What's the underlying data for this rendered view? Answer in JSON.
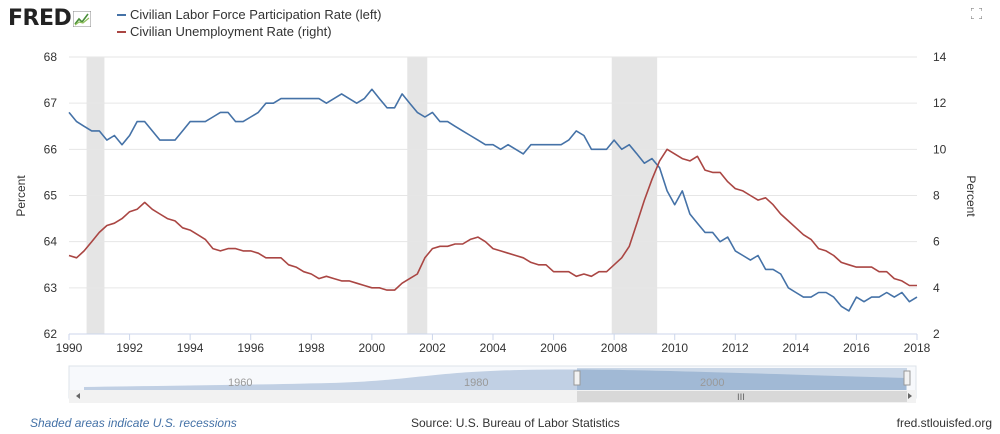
{
  "header": {
    "logo_text": "FRED",
    "fullscreen_icon": "fullscreen-icon",
    "logo_icon": "chart-line-icon"
  },
  "legend": [
    {
      "label": "Civilian Labor Force Participation Rate (left)",
      "color": "#4572a7"
    },
    {
      "label": "Civilian Unemployment Rate (right)",
      "color": "#aa4643"
    }
  ],
  "footer": {
    "recession_note": "Shaded areas indicate U.S. recessions",
    "source": "Source: U.S. Bureau of Labor Statistics",
    "site": "fred.stlouisfed.org"
  },
  "colors": {
    "lfpr": "#4572a7",
    "unrate": "#aa4643",
    "recession": "#e5e5e5",
    "grid": "#e6e6e6"
  },
  "navigator": {
    "labels": [
      "1960",
      "1980",
      "2000"
    ]
  },
  "chart_data": {
    "type": "line",
    "title": "",
    "xlabel": "",
    "x_range": [
      1990,
      2018
    ],
    "x_ticks": [
      "1990",
      "1992",
      "1994",
      "1996",
      "1998",
      "2000",
      "2002",
      "2004",
      "2006",
      "2008",
      "2010",
      "2012",
      "2014",
      "2016",
      "2018"
    ],
    "left_axis": {
      "label": "Percent",
      "range": [
        62,
        68
      ],
      "ticks": [
        "62",
        "63",
        "64",
        "65",
        "66",
        "67",
        "68"
      ]
    },
    "right_axis": {
      "label": "Percent",
      "range": [
        2,
        14
      ],
      "ticks": [
        "2",
        "4",
        "6",
        "8",
        "10",
        "12",
        "14"
      ]
    },
    "recessions": [
      [
        1990.58,
        1991.17
      ],
      [
        2001.17,
        2001.83
      ],
      [
        2007.92,
        2009.42
      ]
    ],
    "series": [
      {
        "name": "Civilian Labor Force Participation Rate (left)",
        "axis": "left",
        "points": [
          [
            1990.0,
            66.8
          ],
          [
            1990.25,
            66.6
          ],
          [
            1990.5,
            66.5
          ],
          [
            1990.75,
            66.4
          ],
          [
            1991.0,
            66.4
          ],
          [
            1991.25,
            66.2
          ],
          [
            1991.5,
            66.3
          ],
          [
            1991.75,
            66.1
          ],
          [
            1992.0,
            66.3
          ],
          [
            1992.25,
            66.6
          ],
          [
            1992.5,
            66.6
          ],
          [
            1992.75,
            66.4
          ],
          [
            1993.0,
            66.2
          ],
          [
            1993.25,
            66.2
          ],
          [
            1993.5,
            66.2
          ],
          [
            1993.75,
            66.4
          ],
          [
            1994.0,
            66.6
          ],
          [
            1994.25,
            66.6
          ],
          [
            1994.5,
            66.6
          ],
          [
            1994.75,
            66.7
          ],
          [
            1995.0,
            66.8
          ],
          [
            1995.25,
            66.8
          ],
          [
            1995.5,
            66.6
          ],
          [
            1995.75,
            66.6
          ],
          [
            1996.0,
            66.7
          ],
          [
            1996.25,
            66.8
          ],
          [
            1996.5,
            67.0
          ],
          [
            1996.75,
            67.0
          ],
          [
            1997.0,
            67.1
          ],
          [
            1997.25,
            67.1
          ],
          [
            1997.5,
            67.1
          ],
          [
            1997.75,
            67.1
          ],
          [
            1998.0,
            67.1
          ],
          [
            1998.25,
            67.1
          ],
          [
            1998.5,
            67.0
          ],
          [
            1998.75,
            67.1
          ],
          [
            1999.0,
            67.2
          ],
          [
            1999.25,
            67.1
          ],
          [
            1999.5,
            67.0
          ],
          [
            1999.75,
            67.1
          ],
          [
            2000.0,
            67.3
          ],
          [
            2000.25,
            67.1
          ],
          [
            2000.5,
            66.9
          ],
          [
            2000.75,
            66.9
          ],
          [
            2001.0,
            67.2
          ],
          [
            2001.25,
            67.0
          ],
          [
            2001.5,
            66.8
          ],
          [
            2001.75,
            66.7
          ],
          [
            2002.0,
            66.8
          ],
          [
            2002.25,
            66.6
          ],
          [
            2002.5,
            66.6
          ],
          [
            2002.75,
            66.5
          ],
          [
            2003.0,
            66.4
          ],
          [
            2003.25,
            66.3
          ],
          [
            2003.5,
            66.2
          ],
          [
            2003.75,
            66.1
          ],
          [
            2004.0,
            66.1
          ],
          [
            2004.25,
            66.0
          ],
          [
            2004.5,
            66.1
          ],
          [
            2004.75,
            66.0
          ],
          [
            2005.0,
            65.9
          ],
          [
            2005.25,
            66.1
          ],
          [
            2005.5,
            66.1
          ],
          [
            2005.75,
            66.1
          ],
          [
            2006.0,
            66.1
          ],
          [
            2006.25,
            66.1
          ],
          [
            2006.5,
            66.2
          ],
          [
            2006.75,
            66.4
          ],
          [
            2007.0,
            66.3
          ],
          [
            2007.25,
            66.0
          ],
          [
            2007.5,
            66.0
          ],
          [
            2007.75,
            66.0
          ],
          [
            2008.0,
            66.2
          ],
          [
            2008.25,
            66.0
          ],
          [
            2008.5,
            66.1
          ],
          [
            2008.75,
            65.9
          ],
          [
            2009.0,
            65.7
          ],
          [
            2009.25,
            65.8
          ],
          [
            2009.5,
            65.6
          ],
          [
            2009.75,
            65.1
          ],
          [
            2010.0,
            64.8
          ],
          [
            2010.25,
            65.1
          ],
          [
            2010.5,
            64.6
          ],
          [
            2010.75,
            64.4
          ],
          [
            2011.0,
            64.2
          ],
          [
            2011.25,
            64.2
          ],
          [
            2011.5,
            64.0
          ],
          [
            2011.75,
            64.1
          ],
          [
            2012.0,
            63.8
          ],
          [
            2012.25,
            63.7
          ],
          [
            2012.5,
            63.6
          ],
          [
            2012.75,
            63.7
          ],
          [
            2013.0,
            63.4
          ],
          [
            2013.25,
            63.4
          ],
          [
            2013.5,
            63.3
          ],
          [
            2013.75,
            63.0
          ],
          [
            2014.0,
            62.9
          ],
          [
            2014.25,
            62.8
          ],
          [
            2014.5,
            62.8
          ],
          [
            2014.75,
            62.9
          ],
          [
            2015.0,
            62.9
          ],
          [
            2015.25,
            62.8
          ],
          [
            2015.5,
            62.6
          ],
          [
            2015.75,
            62.5
          ],
          [
            2016.0,
            62.8
          ],
          [
            2016.25,
            62.7
          ],
          [
            2016.5,
            62.8
          ],
          [
            2016.75,
            62.8
          ],
          [
            2017.0,
            62.9
          ],
          [
            2017.25,
            62.8
          ],
          [
            2017.5,
            62.9
          ],
          [
            2017.75,
            62.7
          ],
          [
            2018.0,
            62.8
          ]
        ]
      },
      {
        "name": "Civilian Unemployment Rate (right)",
        "axis": "right",
        "points": [
          [
            1990.0,
            5.4
          ],
          [
            1990.25,
            5.3
          ],
          [
            1990.5,
            5.6
          ],
          [
            1990.75,
            6.0
          ],
          [
            1991.0,
            6.4
          ],
          [
            1991.25,
            6.7
          ],
          [
            1991.5,
            6.8
          ],
          [
            1991.75,
            7.0
          ],
          [
            1992.0,
            7.3
          ],
          [
            1992.25,
            7.4
          ],
          [
            1992.5,
            7.7
          ],
          [
            1992.75,
            7.4
          ],
          [
            1993.0,
            7.2
          ],
          [
            1993.25,
            7.0
          ],
          [
            1993.5,
            6.9
          ],
          [
            1993.75,
            6.6
          ],
          [
            1994.0,
            6.5
          ],
          [
            1994.25,
            6.3
          ],
          [
            1994.5,
            6.1
          ],
          [
            1994.75,
            5.7
          ],
          [
            1995.0,
            5.6
          ],
          [
            1995.25,
            5.7
          ],
          [
            1995.5,
            5.7
          ],
          [
            1995.75,
            5.6
          ],
          [
            1996.0,
            5.6
          ],
          [
            1996.25,
            5.5
          ],
          [
            1996.5,
            5.3
          ],
          [
            1996.75,
            5.3
          ],
          [
            1997.0,
            5.3
          ],
          [
            1997.25,
            5.0
          ],
          [
            1997.5,
            4.9
          ],
          [
            1997.75,
            4.7
          ],
          [
            1998.0,
            4.6
          ],
          [
            1998.25,
            4.4
          ],
          [
            1998.5,
            4.5
          ],
          [
            1998.75,
            4.4
          ],
          [
            1999.0,
            4.3
          ],
          [
            1999.25,
            4.3
          ],
          [
            1999.5,
            4.2
          ],
          [
            1999.75,
            4.1
          ],
          [
            2000.0,
            4.0
          ],
          [
            2000.25,
            4.0
          ],
          [
            2000.5,
            3.9
          ],
          [
            2000.75,
            3.9
          ],
          [
            2001.0,
            4.2
          ],
          [
            2001.25,
            4.4
          ],
          [
            2001.5,
            4.6
          ],
          [
            2001.75,
            5.3
          ],
          [
            2002.0,
            5.7
          ],
          [
            2002.25,
            5.8
          ],
          [
            2002.5,
            5.8
          ],
          [
            2002.75,
            5.9
          ],
          [
            2003.0,
            5.9
          ],
          [
            2003.25,
            6.1
          ],
          [
            2003.5,
            6.2
          ],
          [
            2003.75,
            6.0
          ],
          [
            2004.0,
            5.7
          ],
          [
            2004.25,
            5.6
          ],
          [
            2004.5,
            5.5
          ],
          [
            2004.75,
            5.4
          ],
          [
            2005.0,
            5.3
          ],
          [
            2005.25,
            5.1
          ],
          [
            2005.5,
            5.0
          ],
          [
            2005.75,
            5.0
          ],
          [
            2006.0,
            4.7
          ],
          [
            2006.25,
            4.7
          ],
          [
            2006.5,
            4.7
          ],
          [
            2006.75,
            4.5
          ],
          [
            2007.0,
            4.6
          ],
          [
            2007.25,
            4.5
          ],
          [
            2007.5,
            4.7
          ],
          [
            2007.75,
            4.7
          ],
          [
            2008.0,
            5.0
          ],
          [
            2008.25,
            5.3
          ],
          [
            2008.5,
            5.8
          ],
          [
            2008.75,
            6.8
          ],
          [
            2009.0,
            7.8
          ],
          [
            2009.25,
            8.7
          ],
          [
            2009.5,
            9.5
          ],
          [
            2009.75,
            10.0
          ],
          [
            2010.0,
            9.8
          ],
          [
            2010.25,
            9.6
          ],
          [
            2010.5,
            9.5
          ],
          [
            2010.75,
            9.7
          ],
          [
            2011.0,
            9.1
          ],
          [
            2011.25,
            9.0
          ],
          [
            2011.5,
            9.0
          ],
          [
            2011.75,
            8.6
          ],
          [
            2012.0,
            8.3
          ],
          [
            2012.25,
            8.2
          ],
          [
            2012.5,
            8.0
          ],
          [
            2012.75,
            7.8
          ],
          [
            2013.0,
            7.9
          ],
          [
            2013.25,
            7.6
          ],
          [
            2013.5,
            7.2
          ],
          [
            2013.75,
            6.9
          ],
          [
            2014.0,
            6.6
          ],
          [
            2014.25,
            6.3
          ],
          [
            2014.5,
            6.1
          ],
          [
            2014.75,
            5.7
          ],
          [
            2015.0,
            5.6
          ],
          [
            2015.25,
            5.4
          ],
          [
            2015.5,
            5.1
          ],
          [
            2015.75,
            5.0
          ],
          [
            2016.0,
            4.9
          ],
          [
            2016.25,
            4.9
          ],
          [
            2016.5,
            4.9
          ],
          [
            2016.75,
            4.7
          ],
          [
            2017.0,
            4.7
          ],
          [
            2017.25,
            4.4
          ],
          [
            2017.5,
            4.3
          ],
          [
            2017.75,
            4.1
          ],
          [
            2018.0,
            4.1
          ]
        ]
      }
    ]
  }
}
